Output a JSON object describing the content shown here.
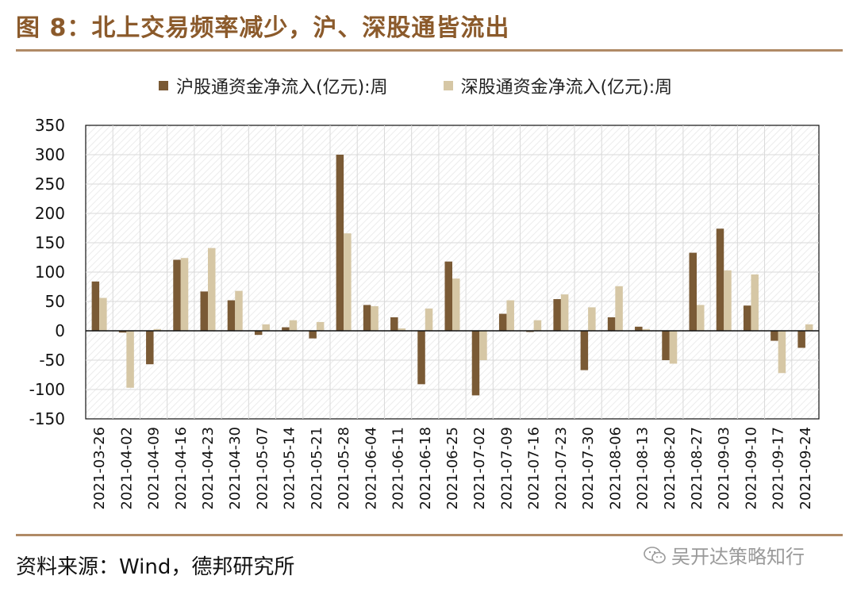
{
  "title": "图 8：北上交易频率减少，沪、深股通皆流出",
  "source": "资料来源：Wind，德邦研究所",
  "watermark": "吴开达策略知行",
  "colors": {
    "title": "#8b5a2b",
    "series1": "#7a5a35",
    "series2": "#d6c7a5",
    "grid": "#d9d9d9"
  },
  "chart_data": {
    "type": "bar",
    "categories": [
      "2021-03-26",
      "2021-04-02",
      "2021-04-09",
      "2021-04-16",
      "2021-04-23",
      "2021-04-30",
      "2021-05-07",
      "2021-05-14",
      "2021-05-21",
      "2021-05-28",
      "2021-06-04",
      "2021-06-11",
      "2021-06-18",
      "2021-06-25",
      "2021-07-02",
      "2021-07-09",
      "2021-07-16",
      "2021-07-23",
      "2021-07-30",
      "2021-08-06",
      "2021-08-13",
      "2021-08-20",
      "2021-08-27",
      "2021-09-03",
      "2021-09-10",
      "2021-09-17",
      "2021-09-24"
    ],
    "series": [
      {
        "name": "沪股通资金净流入(亿元):周",
        "values": [
          84,
          -3,
          -57,
          121,
          67,
          52,
          -7,
          6,
          -13,
          300,
          44,
          23,
          -91,
          118,
          -110,
          29,
          -2,
          54,
          -67,
          23,
          7,
          -50,
          133,
          174,
          43,
          -17,
          -29
        ]
      },
      {
        "name": "深股通资金净流入(亿元):周",
        "values": [
          56,
          -97,
          3,
          124,
          141,
          68,
          11,
          18,
          15,
          166,
          42,
          4,
          38,
          89,
          -50,
          52,
          18,
          62,
          40,
          76,
          3,
          -56,
          44,
          103,
          96,
          -72,
          11
        ]
      }
    ],
    "ylim": [
      -150,
      350
    ],
    "yticks": [
      -150,
      -100,
      -50,
      0,
      50,
      100,
      150,
      200,
      250,
      300,
      350
    ],
    "grid": true,
    "legend": "top-center"
  }
}
